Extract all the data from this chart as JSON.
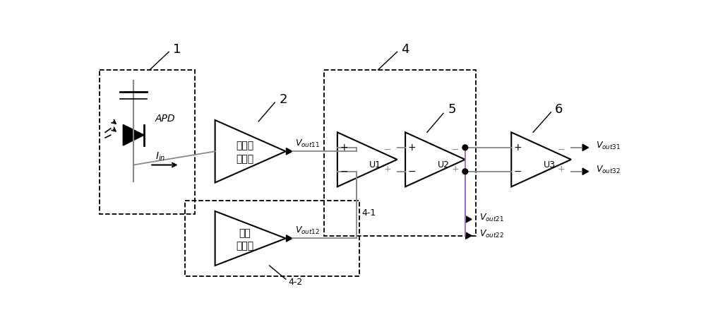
{
  "bg_color": "#ffffff",
  "line_color": "#000000",
  "gray_color": "#888888",
  "purple_color": "#9966cc",
  "fig_width": 10.0,
  "fig_height": 4.7,
  "dpi": 100,
  "labels": {
    "apd": "APD",
    "i_in": "$I_{in}$",
    "amp1_line1": "跨阻预",
    "amp1_line2": "放大器",
    "amp2_line1": "基准",
    "amp2_line2": "放大器",
    "u1": "U1",
    "u2": "U2",
    "u3": "U3",
    "label1": "1",
    "label2": "2",
    "label4": "4",
    "label41": "4-1",
    "label42": "4-2",
    "label5": "5",
    "label6": "6",
    "vout11": "$V_{out11}$",
    "vout12": "$V_{out12}$",
    "vout21": "$V_{out21}$",
    "vout22": "$V_{out22}$",
    "vout31": "$V_{out31}$",
    "vout32": "$V_{out32}$"
  }
}
